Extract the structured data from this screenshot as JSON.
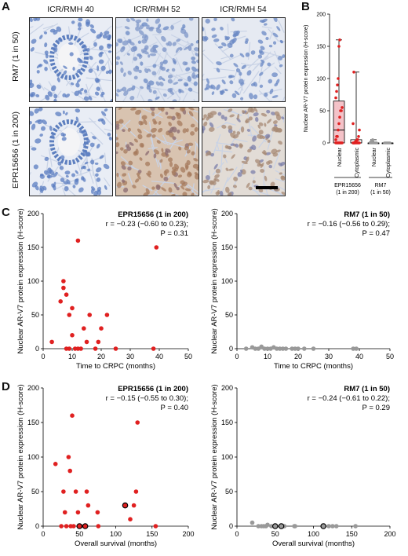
{
  "panel_letters": {
    "A": "A",
    "B": "B",
    "C": "C",
    "D": "D"
  },
  "panel_a": {
    "columns": [
      "ICR/RMH 40",
      "ICR/RMH 52",
      "ICR/RMH 54"
    ],
    "rows": [
      "RM7 (1 in 50)",
      "EPR15656 (1 in 200)"
    ]
  },
  "colors": {
    "red": "#e02020",
    "grey": "#999999",
    "box_fill": "#f4c2c8",
    "hema": "#7d9ccf",
    "dab": "#b58a6a"
  },
  "chart_data": [
    {
      "id": "B",
      "type": "box",
      "ylabel": "Nuclear AR-V7 protein expression (H-score)",
      "yticks": [
        0,
        50,
        100,
        150,
        200
      ],
      "ylim": [
        0,
        200
      ],
      "categories": [
        "Nuclear",
        "Cytoplasmic",
        "Nuclear",
        "Cytoplasmic"
      ],
      "group_labels": [
        {
          "line1": "EPR15656",
          "line2": "(1 in 200)"
        },
        {
          "line1": "RM7",
          "line2": "(1 in 50)"
        }
      ],
      "boxes": [
        {
          "q1": 0,
          "median": 20,
          "q3": 65,
          "min": 0,
          "max": 160,
          "points": [
            0,
            0,
            0,
            0,
            0,
            0,
            0,
            0,
            0,
            5,
            10,
            10,
            20,
            30,
            40,
            50,
            50,
            55,
            70,
            80,
            90,
            100,
            150,
            160
          ]
        },
        {
          "q1": 0,
          "median": 0,
          "q3": 5,
          "min": 0,
          "max": 110,
          "points": [
            0,
            0,
            0,
            0,
            0,
            0,
            0,
            0,
            0,
            0,
            0,
            0,
            2,
            3,
            5,
            5,
            10,
            20,
            30,
            110
          ]
        },
        {
          "q1": 0,
          "median": 0,
          "q3": 0,
          "min": 0,
          "max": 5,
          "points": [
            0,
            0,
            0,
            0,
            0,
            0,
            0,
            0,
            0,
            1,
            2,
            3,
            5
          ]
        },
        {
          "q1": 0,
          "median": 0,
          "q3": 0,
          "min": 0,
          "max": 0,
          "points": [
            0,
            0,
            0,
            0,
            0,
            0,
            0,
            0
          ]
        }
      ]
    },
    {
      "id": "C-left",
      "type": "scatter",
      "title": "EPR15656 (1 in 200)",
      "stat_r": "r = −0.23 (−0.60 to 0.23);",
      "stat_p": "P = 0.31",
      "xlabel": "Time to CRPC (months)",
      "ylabel": "Nuclear AR-V7 protein expression (H-score)",
      "xticks": [
        0,
        10,
        20,
        30,
        40,
        50
      ],
      "yticks": [
        0,
        50,
        100,
        150,
        200
      ],
      "xlim": [
        0,
        50
      ],
      "ylim": [
        0,
        200
      ],
      "points": [
        [
          3,
          10
        ],
        [
          6,
          70
        ],
        [
          7,
          90
        ],
        [
          7,
          100
        ],
        [
          8,
          80
        ],
        [
          8,
          0
        ],
        [
          9,
          50
        ],
        [
          9,
          0
        ],
        [
          10,
          60
        ],
        [
          10,
          20
        ],
        [
          11,
          0
        ],
        [
          12,
          160
        ],
        [
          12,
          0
        ],
        [
          13,
          0
        ],
        [
          14,
          30
        ],
        [
          15,
          10
        ],
        [
          16,
          50
        ],
        [
          18,
          0
        ],
        [
          19,
          10
        ],
        [
          20,
          30
        ],
        [
          22,
          50
        ],
        [
          25,
          0
        ],
        [
          38,
          0
        ],
        [
          39,
          150
        ]
      ],
      "color": "#e02020"
    },
    {
      "id": "C-right",
      "type": "scatter",
      "title": "RM7 (1 in 50)",
      "stat_r": "r = −0.16 (−0.56 to 0.29);",
      "stat_p": "P = 0.47",
      "xlabel": "Time to CRPC (months)",
      "ylabel": "Nuclear AR-V7 protein expression (H-score)",
      "xticks": [
        0,
        10,
        20,
        30,
        40,
        50
      ],
      "yticks": [
        0,
        50,
        100,
        150,
        200
      ],
      "xlim": [
        0,
        50
      ],
      "ylim": [
        0,
        200
      ],
      "points": [
        [
          3,
          0
        ],
        [
          5,
          2
        ],
        [
          6,
          0
        ],
        [
          7,
          0
        ],
        [
          8,
          3
        ],
        [
          9,
          0
        ],
        [
          10,
          0
        ],
        [
          11,
          0
        ],
        [
          12,
          2
        ],
        [
          13,
          0
        ],
        [
          14,
          0
        ],
        [
          15,
          0
        ],
        [
          16,
          0
        ],
        [
          18,
          0
        ],
        [
          19,
          0
        ],
        [
          20,
          0
        ],
        [
          22,
          0
        ],
        [
          25,
          0
        ],
        [
          38,
          0
        ],
        [
          39,
          0
        ]
      ],
      "color": "#999999"
    },
    {
      "id": "D-left",
      "type": "scatter",
      "title": "EPR15656 (1 in 200)",
      "stat_r": "r = −0.15 (−0.55 to 0.30);",
      "stat_p": "P = 0.40",
      "xlabel": "Overall survival (months)",
      "ylabel": "Nuclear AR-V7 protein expression (H-score)",
      "xticks": [
        0,
        50,
        100,
        150,
        200
      ],
      "yticks": [
        0,
        50,
        100,
        150,
        200
      ],
      "xlim": [
        0,
        200
      ],
      "ylim": [
        0,
        200
      ],
      "points": [
        [
          17,
          90
        ],
        [
          25,
          0
        ],
        [
          28,
          50
        ],
        [
          30,
          20
        ],
        [
          32,
          0
        ],
        [
          35,
          100
        ],
        [
          37,
          80
        ],
        [
          38,
          0
        ],
        [
          40,
          160
        ],
        [
          42,
          0
        ],
        [
          45,
          50
        ],
        [
          48,
          20
        ],
        [
          52,
          0
        ],
        [
          57,
          0
        ],
        [
          60,
          50
        ],
        [
          62,
          30
        ],
        [
          75,
          20
        ],
        [
          76,
          0
        ],
        [
          120,
          10
        ],
        [
          125,
          30
        ],
        [
          130,
          150
        ],
        [
          128,
          50
        ],
        [
          155,
          0
        ]
      ],
      "circled": [
        [
          50,
          0
        ],
        [
          58,
          0
        ],
        [
          113,
          30
        ]
      ],
      "color": "#e02020"
    },
    {
      "id": "D-right",
      "type": "scatter",
      "title": "RM7 (1 in 50)",
      "stat_r": "r = −0.24 (−0.61 to 0.22);",
      "stat_p": "P = 0.29",
      "xlabel": "Overall survival (months)",
      "ylabel": "Nuclear AR-V7 protein expression (H-score)",
      "xticks": [
        0,
        50,
        100,
        150,
        200
      ],
      "yticks": [
        0,
        50,
        100,
        150,
        200
      ],
      "xlim": [
        0,
        200
      ],
      "ylim": [
        0,
        200
      ],
      "points": [
        [
          20,
          5
        ],
        [
          28,
          0
        ],
        [
          32,
          0
        ],
        [
          35,
          0
        ],
        [
          38,
          0
        ],
        [
          40,
          2
        ],
        [
          45,
          0
        ],
        [
          60,
          0
        ],
        [
          62,
          0
        ],
        [
          75,
          0
        ],
        [
          76,
          0
        ],
        [
          120,
          0
        ],
        [
          125,
          0
        ],
        [
          130,
          0
        ],
        [
          155,
          0
        ]
      ],
      "circled": [
        [
          50,
          0
        ],
        [
          58,
          0
        ],
        [
          113,
          0
        ]
      ],
      "color": "#999999"
    }
  ]
}
